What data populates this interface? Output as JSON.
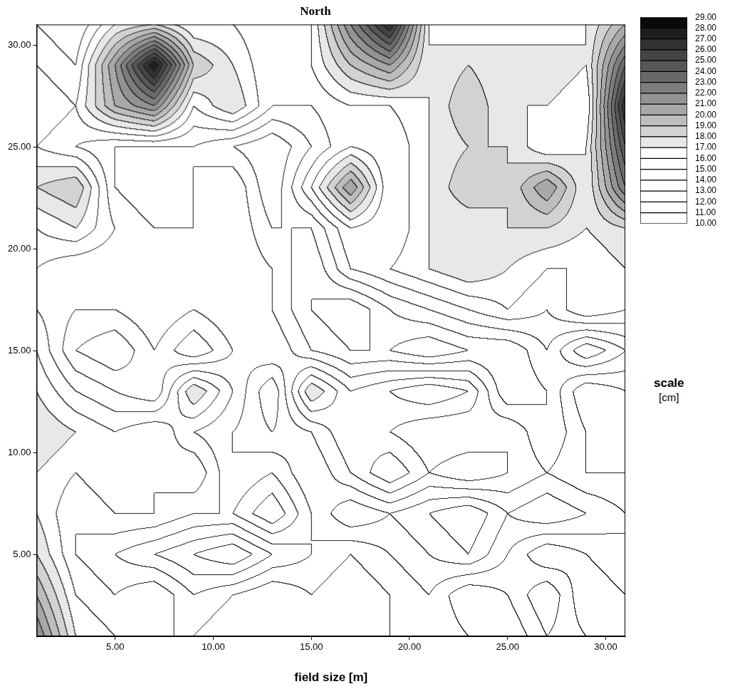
{
  "chart_data": {
    "type": "contour",
    "title": "North",
    "x_label": "field size [m]",
    "xlim": [
      1,
      31
    ],
    "ylim": [
      1,
      31
    ],
    "xticks": [
      {
        "value": 5,
        "label": "5.00"
      },
      {
        "value": 10,
        "label": "10.00"
      },
      {
        "value": 15,
        "label": "15.00"
      },
      {
        "value": 20,
        "label": "20.00"
      },
      {
        "value": 25,
        "label": "25.00"
      },
      {
        "value": 30,
        "label": "30.00"
      }
    ],
    "yticks": [
      {
        "value": 5,
        "label": "5.00"
      },
      {
        "value": 10,
        "label": "10.00"
      },
      {
        "value": 15,
        "label": "15.00"
      },
      {
        "value": 20,
        "label": "20.00"
      },
      {
        "value": 25,
        "label": "25.00"
      },
      {
        "value": 30,
        "label": "30.00"
      }
    ],
    "grid": false,
    "x": [
      1,
      3,
      5,
      7,
      9,
      11,
      13,
      15,
      17,
      19,
      21,
      23,
      25,
      27,
      29,
      31
    ],
    "y": [
      1,
      3,
      5,
      7,
      9,
      11,
      13,
      15,
      17,
      19,
      21,
      23,
      25,
      27,
      29,
      31
    ],
    "z": [
      [
        22,
        17,
        16,
        15,
        15,
        16,
        15,
        16,
        16,
        15,
        14,
        15,
        16,
        14,
        15,
        16
      ],
      [
        20,
        16,
        15,
        16,
        14,
        15,
        16,
        15,
        16,
        15,
        14,
        16,
        15,
        13,
        16,
        15
      ],
      [
        18,
        15,
        14,
        13,
        12,
        11,
        13,
        14,
        15,
        14,
        13,
        12,
        14,
        16,
        15,
        14
      ],
      [
        17,
        15,
        16,
        16,
        15,
        15,
        17,
        14,
        12,
        13,
        12,
        11,
        13,
        12,
        13,
        14
      ],
      [
        17,
        16,
        17,
        16,
        17,
        14,
        15,
        13,
        15,
        17,
        15,
        16,
        15,
        14,
        15,
        15
      ],
      [
        18,
        17,
        16,
        17,
        15,
        14,
        13,
        14,
        16,
        15,
        14,
        14,
        15,
        13,
        15,
        16
      ],
      [
        17,
        15,
        14,
        13,
        18,
        15,
        12,
        18,
        15,
        16,
        17,
        16,
        12,
        13,
        16,
        15
      ],
      [
        16,
        13,
        12,
        14,
        12,
        14,
        15,
        13,
        12,
        12,
        11,
        12,
        12,
        14,
        11,
        13
      ],
      [
        15,
        14,
        14,
        15,
        14,
        15,
        14,
        12,
        11,
        13,
        14,
        15,
        16,
        15,
        17,
        16
      ],
      [
        15,
        14,
        14,
        15,
        14,
        15,
        14,
        12,
        15,
        16,
        17,
        18,
        17,
        16,
        16,
        17
      ],
      [
        16,
        17,
        15,
        14,
        14,
        15,
        13,
        13,
        16,
        15,
        17,
        17,
        18,
        18,
        17,
        18
      ],
      [
        18,
        19,
        14,
        13,
        14,
        15,
        12,
        16,
        21,
        15,
        17,
        19,
        18,
        21,
        17,
        23
      ],
      [
        16,
        15,
        14,
        14,
        14,
        13,
        12,
        14,
        16,
        15,
        17,
        18,
        18,
        16,
        17,
        25
      ],
      [
        17,
        16,
        20,
        22,
        16,
        18,
        15,
        15,
        16,
        16,
        17,
        19,
        17,
        17,
        16,
        27
      ],
      [
        16,
        15,
        21,
        28,
        19,
        17,
        15,
        16,
        19,
        21,
        17,
        18,
        17,
        18,
        17,
        24
      ],
      [
        15,
        14,
        17,
        18,
        16,
        16,
        15,
        16,
        22,
        27,
        17,
        16,
        17,
        16,
        17,
        20
      ]
    ],
    "colorbar": {
      "label": "scale [cm]",
      "lim": [
        10,
        29
      ],
      "ticks": [
        {
          "value": 10,
          "label": "10.00"
        },
        {
          "value": 11,
          "label": "11.00"
        },
        {
          "value": 12,
          "label": "12.00"
        },
        {
          "value": 13,
          "label": "13.00"
        },
        {
          "value": 14,
          "label": "14.00"
        },
        {
          "value": 15,
          "label": "15.00"
        },
        {
          "value": 16,
          "label": "16.00"
        },
        {
          "value": 17,
          "label": "17.00"
        },
        {
          "value": 18,
          "label": "18.00"
        },
        {
          "value": 19,
          "label": "19.00"
        },
        {
          "value": 20,
          "label": "20.00"
        },
        {
          "value": 21,
          "label": "21.00"
        },
        {
          "value": 22,
          "label": "22.00"
        },
        {
          "value": 23,
          "label": "23.00"
        },
        {
          "value": 24,
          "label": "24.00"
        },
        {
          "value": 25,
          "label": "25.00"
        },
        {
          "value": 26,
          "label": "26.00"
        },
        {
          "value": 27,
          "label": "27.00"
        },
        {
          "value": 28,
          "label": "28.00"
        },
        {
          "value": 29,
          "label": "29.00"
        }
      ],
      "colors": [
        "#ffffff",
        "#ffffff",
        "#ffffff",
        "#ffffff",
        "#ffffff",
        "#ffffff",
        "#ffffff",
        "#e8e8e8",
        "#d2d2d2",
        "#bdbdbd",
        "#a8a8a8",
        "#939393",
        "#7e7e7e",
        "#6a6a6a",
        "#575757",
        "#444444",
        "#323232",
        "#1e1e1e",
        "#0a0a0a"
      ]
    }
  }
}
